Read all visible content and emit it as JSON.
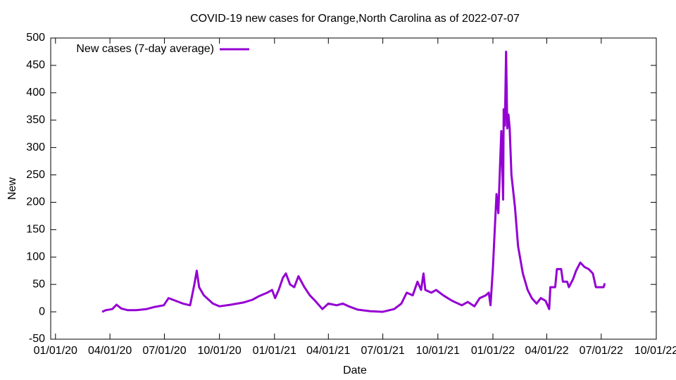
{
  "chart_data": {
    "type": "line",
    "title": "COVID-19 new cases for Orange,North Carolina as of 2022-07-07",
    "x_label": "Date",
    "y_label": "New",
    "x": [
      "2020-03-19",
      "2020-03-25",
      "2020-04-05",
      "2020-04-12",
      "2020-04-20",
      "2020-05-01",
      "2020-05-15",
      "2020-06-01",
      "2020-06-15",
      "2020-06-30",
      "2020-07-08",
      "2020-07-20",
      "2020-08-01",
      "2020-08-13",
      "2020-08-20",
      "2020-08-24",
      "2020-08-28",
      "2020-09-05",
      "2020-09-20",
      "2020-10-01",
      "2020-10-20",
      "2020-11-10",
      "2020-11-25",
      "2020-12-05",
      "2020-12-20",
      "2020-12-28",
      "2021-01-02",
      "2021-01-08",
      "2021-01-15",
      "2021-01-20",
      "2021-01-27",
      "2021-02-03",
      "2021-02-10",
      "2021-02-20",
      "2021-03-01",
      "2021-03-10",
      "2021-03-22",
      "2021-04-01",
      "2021-04-15",
      "2021-04-25",
      "2021-05-05",
      "2021-05-20",
      "2021-06-10",
      "2021-07-01",
      "2021-07-20",
      "2021-08-01",
      "2021-08-10",
      "2021-08-20",
      "2021-08-28",
      "2021-09-03",
      "2021-09-07",
      "2021-09-10",
      "2021-09-20",
      "2021-09-28",
      "2021-10-10",
      "2021-10-25",
      "2021-11-10",
      "2021-11-20",
      "2021-12-01",
      "2021-12-10",
      "2021-12-20",
      "2021-12-25",
      "2021-12-28",
      "2022-01-01",
      "2022-01-04",
      "2022-01-07",
      "2022-01-10",
      "2022-01-13",
      "2022-01-15",
      "2022-01-18",
      "2022-01-19",
      "2022-01-21",
      "2022-01-23",
      "2022-01-25",
      "2022-01-27",
      "2022-01-29",
      "2022-02-01",
      "2022-02-07",
      "2022-02-12",
      "2022-02-20",
      "2022-02-28",
      "2022-03-07",
      "2022-03-15",
      "2022-03-22",
      "2022-03-30",
      "2022-04-05",
      "2022-04-07",
      "2022-04-15",
      "2022-04-18",
      "2022-04-25",
      "2022-04-28",
      "2022-05-05",
      "2022-05-08",
      "2022-05-15",
      "2022-05-20",
      "2022-05-27",
      "2022-06-03",
      "2022-06-10",
      "2022-06-17",
      "2022-06-22",
      "2022-07-01",
      "2022-07-05",
      "2022-07-07"
    ],
    "series": [
      {
        "name": "New cases (7-day average)",
        "color": "#9400d3",
        "values": [
          0,
          3,
          5,
          13,
          6,
          3,
          3,
          5,
          9,
          12,
          25,
          20,
          15,
          12,
          50,
          75,
          45,
          30,
          15,
          10,
          13,
          17,
          22,
          28,
          35,
          40,
          25,
          40,
          62,
          70,
          50,
          45,
          65,
          45,
          30,
          20,
          5,
          15,
          12,
          15,
          10,
          4,
          1,
          0,
          5,
          15,
          35,
          30,
          55,
          40,
          70,
          40,
          35,
          40,
          30,
          20,
          12,
          18,
          10,
          25,
          30,
          35,
          12,
          80,
          150,
          215,
          180,
          270,
          330,
          205,
          370,
          340,
          475,
          335,
          360,
          335,
          250,
          190,
          120,
          70,
          40,
          25,
          15,
          25,
          20,
          5,
          45,
          45,
          78,
          78,
          55,
          55,
          45,
          60,
          75,
          90,
          82,
          78,
          70,
          45,
          45,
          45,
          52
        ]
      }
    ],
    "xlim": [
      "2019-12-24",
      "2022-10-01"
    ],
    "xticks": [
      {
        "value": "2020-01-01",
        "label": "01/01/20"
      },
      {
        "value": "2020-04-01",
        "label": "04/01/20"
      },
      {
        "value": "2020-07-01",
        "label": "07/01/20"
      },
      {
        "value": "2020-10-01",
        "label": "10/01/20"
      },
      {
        "value": "2021-01-01",
        "label": "01/01/21"
      },
      {
        "value": "2021-04-01",
        "label": "04/01/21"
      },
      {
        "value": "2021-07-01",
        "label": "07/01/21"
      },
      {
        "value": "2021-10-01",
        "label": "10/01/21"
      },
      {
        "value": "2022-01-01",
        "label": "01/01/22"
      },
      {
        "value": "2022-04-01",
        "label": "04/01/22"
      },
      {
        "value": "2022-07-01",
        "label": "07/01/22"
      },
      {
        "value": "2022-10-01",
        "label": "10/01/22"
      }
    ],
    "ylim": [
      -50,
      500
    ],
    "yticks": [
      -50,
      0,
      50,
      100,
      150,
      200,
      250,
      300,
      350,
      400,
      450,
      500
    ],
    "legend": "top-left"
  }
}
